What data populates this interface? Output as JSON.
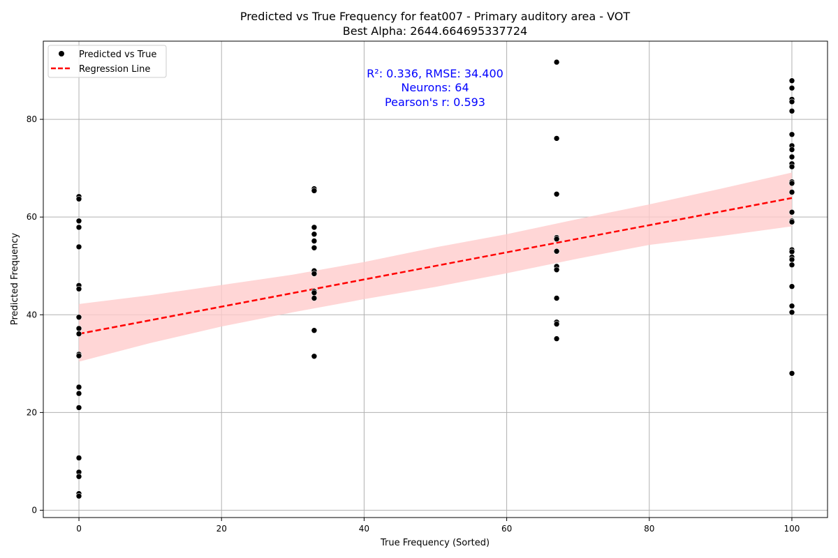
{
  "chart_data": {
    "type": "scatter",
    "title": "Predicted vs True Frequency for feat007 - Primary auditory area - VOT",
    "subtitle": "Best Alpha: 2644.664695337724",
    "xlabel": "True Frequency (Sorted)",
    "ylabel": "Predicted Frequency",
    "xlim": [
      -5,
      105
    ],
    "ylim": [
      -1.5,
      96
    ],
    "xticks": [
      0,
      20,
      40,
      60,
      80,
      100
    ],
    "yticks": [
      0,
      20,
      40,
      60,
      80
    ],
    "grid": true,
    "legend_position": "top-left",
    "colors": {
      "points": "#000000",
      "regression": "#ff0000",
      "band": "#ffcccc",
      "annotation": "#0000ff",
      "grid": "#b0b0b0"
    },
    "legend": [
      {
        "label": "Predicted vs True",
        "marker": "point"
      },
      {
        "label": "Regression Line",
        "marker": "dashed-line"
      }
    ],
    "annotation_lines": [
      "R²: 0.336, RMSE: 34.400",
      "Neurons: 64",
      "Pearson's r: 0.593"
    ],
    "series": [
      {
        "name": "Predicted vs True",
        "kind": "scatter",
        "points": [
          {
            "x": 0,
            "y": 64.2
          },
          {
            "x": 0,
            "y": 63.7
          },
          {
            "x": 0,
            "y": 59.2
          },
          {
            "x": 0,
            "y": 57.9
          },
          {
            "x": 0,
            "y": 53.9
          },
          {
            "x": 0,
            "y": 46.0
          },
          {
            "x": 0,
            "y": 45.3
          },
          {
            "x": 0,
            "y": 39.5
          },
          {
            "x": 0,
            "y": 37.2
          },
          {
            "x": 0,
            "y": 36.1
          },
          {
            "x": 0,
            "y": 31.9
          },
          {
            "x": 0,
            "y": 31.6
          },
          {
            "x": 0,
            "y": 25.2
          },
          {
            "x": 0,
            "y": 23.9
          },
          {
            "x": 0,
            "y": 21.0
          },
          {
            "x": 0,
            "y": 10.7
          },
          {
            "x": 0,
            "y": 7.8
          },
          {
            "x": 0,
            "y": 6.9
          },
          {
            "x": 0,
            "y": 3.4
          },
          {
            "x": 0,
            "y": 2.9
          },
          {
            "x": 33,
            "y": 65.8
          },
          {
            "x": 33,
            "y": 65.4
          },
          {
            "x": 33,
            "y": 57.9
          },
          {
            "x": 33,
            "y": 56.5
          },
          {
            "x": 33,
            "y": 55.1
          },
          {
            "x": 33,
            "y": 53.7
          },
          {
            "x": 33,
            "y": 49.0
          },
          {
            "x": 33,
            "y": 48.4
          },
          {
            "x": 33,
            "y": 44.8
          },
          {
            "x": 33,
            "y": 44.5
          },
          {
            "x": 33,
            "y": 43.4
          },
          {
            "x": 33,
            "y": 36.8
          },
          {
            "x": 33,
            "y": 31.5
          },
          {
            "x": 67,
            "y": 91.7
          },
          {
            "x": 67,
            "y": 76.1
          },
          {
            "x": 67,
            "y": 64.7
          },
          {
            "x": 67,
            "y": 55.8
          },
          {
            "x": 67,
            "y": 55.5
          },
          {
            "x": 67,
            "y": 53.0
          },
          {
            "x": 67,
            "y": 49.9
          },
          {
            "x": 67,
            "y": 49.2
          },
          {
            "x": 67,
            "y": 43.4
          },
          {
            "x": 67,
            "y": 38.5
          },
          {
            "x": 67,
            "y": 38.1
          },
          {
            "x": 67,
            "y": 35.1
          },
          {
            "x": 100,
            "y": 87.9
          },
          {
            "x": 100,
            "y": 86.4
          },
          {
            "x": 100,
            "y": 84.1
          },
          {
            "x": 100,
            "y": 83.6
          },
          {
            "x": 100,
            "y": 81.7
          },
          {
            "x": 100,
            "y": 76.9
          },
          {
            "x": 100,
            "y": 74.6
          },
          {
            "x": 100,
            "y": 73.8
          },
          {
            "x": 100,
            "y": 72.3
          },
          {
            "x": 100,
            "y": 70.9
          },
          {
            "x": 100,
            "y": 70.3
          },
          {
            "x": 100,
            "y": 67.2
          },
          {
            "x": 100,
            "y": 66.9
          },
          {
            "x": 100,
            "y": 65.1
          },
          {
            "x": 100,
            "y": 61.0
          },
          {
            "x": 100,
            "y": 59.2
          },
          {
            "x": 100,
            "y": 59.0
          },
          {
            "x": 100,
            "y": 53.3
          },
          {
            "x": 100,
            "y": 52.9
          },
          {
            "x": 100,
            "y": 51.8
          },
          {
            "x": 100,
            "y": 51.3
          },
          {
            "x": 100,
            "y": 50.2
          },
          {
            "x": 100,
            "y": 45.8
          },
          {
            "x": 100,
            "y": 41.8
          },
          {
            "x": 100,
            "y": 40.5
          },
          {
            "x": 100,
            "y": 28.0
          }
        ]
      },
      {
        "name": "Regression Line",
        "kind": "line",
        "points": [
          {
            "x": 0,
            "y": 36.1
          },
          {
            "x": 100,
            "y": 63.9
          }
        ]
      }
    ],
    "confidence_band": [
      {
        "x": 0,
        "lower": 30.4,
        "upper": 42.2
      },
      {
        "x": 10,
        "lower": 34.2,
        "upper": 44.0
      },
      {
        "x": 20,
        "lower": 37.6,
        "upper": 46.1
      },
      {
        "x": 30,
        "lower": 40.5,
        "upper": 48.2
      },
      {
        "x": 40,
        "lower": 43.2,
        "upper": 50.8
      },
      {
        "x": 50,
        "lower": 45.7,
        "upper": 53.8
      },
      {
        "x": 60,
        "lower": 48.5,
        "upper": 56.5
      },
      {
        "x": 70,
        "lower": 51.5,
        "upper": 59.6
      },
      {
        "x": 80,
        "lower": 54.3,
        "upper": 62.6
      },
      {
        "x": 90,
        "lower": 56.1,
        "upper": 65.8
      },
      {
        "x": 100,
        "lower": 58.1,
        "upper": 69.1
      }
    ]
  }
}
